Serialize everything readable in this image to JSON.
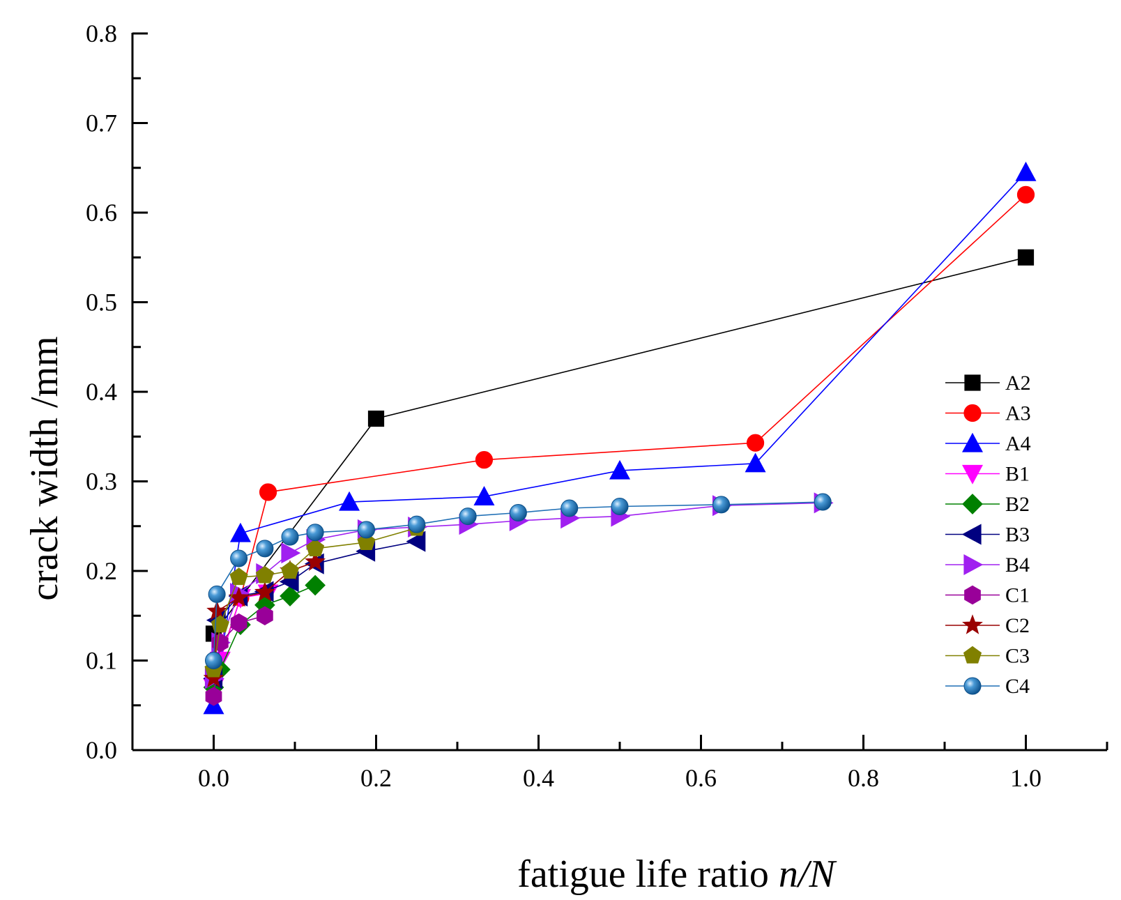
{
  "chart_data": {
    "type": "line",
    "title": "",
    "xlabel_prefix": "fatigue life ratio ",
    "xlabel_italic": "n/N",
    "ylabel": "crack width /mm",
    "xlim": [
      -0.1,
      1.1
    ],
    "ylim": [
      0.0,
      0.8
    ],
    "xticks": [
      0.0,
      0.2,
      0.4,
      0.6,
      0.8,
      1.0
    ],
    "xtick_labels": [
      "0.0",
      "0.2",
      "0.4",
      "0.6",
      "0.8",
      "1.0"
    ],
    "yticks": [
      0.0,
      0.1,
      0.2,
      0.3,
      0.4,
      0.5,
      0.6,
      0.7,
      0.8
    ],
    "ytick_labels": [
      "0.0",
      "0.1",
      "0.2",
      "0.3",
      "0.4",
      "0.5",
      "0.6",
      "0.7",
      "0.8"
    ],
    "legend_position": "right",
    "series": [
      {
        "name": "A2",
        "color": "#000000",
        "marker": "square",
        "x": [
          0.0,
          0.2,
          1.0
        ],
        "y": [
          0.13,
          0.37,
          0.55
        ]
      },
      {
        "name": "A3",
        "color": "#ff0000",
        "marker": "circle",
        "x": [
          0.0,
          0.033,
          0.067,
          0.333,
          0.667,
          1.0
        ],
        "y": [
          0.08,
          0.17,
          0.288,
          0.324,
          0.343,
          0.62
        ]
      },
      {
        "name": "A4",
        "color": "#0000ff",
        "marker": "triangle-up",
        "x": [
          0.0,
          0.033,
          0.167,
          0.333,
          0.5,
          0.667,
          1.0
        ],
        "y": [
          0.05,
          0.242,
          0.277,
          0.283,
          0.312,
          0.32,
          0.645
        ]
      },
      {
        "name": "B1",
        "color": "#ff00ff",
        "marker": "triangle-down",
        "x": [
          0.0,
          0.008,
          0.033,
          0.067
        ],
        "y": [
          0.07,
          0.1,
          0.17,
          0.175
        ]
      },
      {
        "name": "B2",
        "color": "#008000",
        "marker": "diamond",
        "x": [
          0.0,
          0.008,
          0.033,
          0.063,
          0.094,
          0.125
        ],
        "y": [
          0.07,
          0.09,
          0.14,
          0.162,
          0.172,
          0.184
        ]
      },
      {
        "name": "B3",
        "color": "#000080",
        "marker": "triangle-left",
        "x": [
          0.0,
          0.004,
          0.031,
          0.063,
          0.094,
          0.125,
          0.188,
          0.25
        ],
        "y": [
          0.08,
          0.145,
          0.172,
          0.177,
          0.188,
          0.208,
          0.222,
          0.233
        ]
      },
      {
        "name": "B4",
        "color": "#a020f0",
        "marker": "triangle-right",
        "x": [
          0.0,
          0.008,
          0.031,
          0.063,
          0.094,
          0.125,
          0.188,
          0.25,
          0.313,
          0.375,
          0.438,
          0.5,
          0.625,
          0.75
        ],
        "y": [
          0.08,
          0.12,
          0.175,
          0.197,
          0.22,
          0.235,
          0.246,
          0.249,
          0.252,
          0.256,
          0.259,
          0.261,
          0.273,
          0.276
        ]
      },
      {
        "name": "C1",
        "color": "#990099",
        "marker": "hexagon",
        "x": [
          0.0,
          0.008,
          0.031,
          0.063
        ],
        "y": [
          0.06,
          0.12,
          0.142,
          0.15
        ]
      },
      {
        "name": "C2",
        "color": "#990000",
        "marker": "star",
        "x": [
          0.0,
          0.004,
          0.031,
          0.063,
          0.094,
          0.125
        ],
        "y": [
          0.08,
          0.155,
          0.17,
          0.176,
          0.2,
          0.21
        ]
      },
      {
        "name": "C3",
        "color": "#808000",
        "marker": "pentagon",
        "x": [
          0.0,
          0.008,
          0.031,
          0.063,
          0.094,
          0.125,
          0.188,
          0.25
        ],
        "y": [
          0.09,
          0.14,
          0.193,
          0.195,
          0.2,
          0.225,
          0.232,
          0.248
        ]
      },
      {
        "name": "C4",
        "color": "#1f6fb5",
        "marker": "ball",
        "x": [
          0.0,
          0.004,
          0.031,
          0.063,
          0.094,
          0.125,
          0.188,
          0.25,
          0.313,
          0.375,
          0.438,
          0.5,
          0.625,
          0.75
        ],
        "y": [
          0.1,
          0.174,
          0.214,
          0.225,
          0.238,
          0.243,
          0.246,
          0.252,
          0.261,
          0.265,
          0.27,
          0.272,
          0.274,
          0.277
        ]
      }
    ]
  }
}
